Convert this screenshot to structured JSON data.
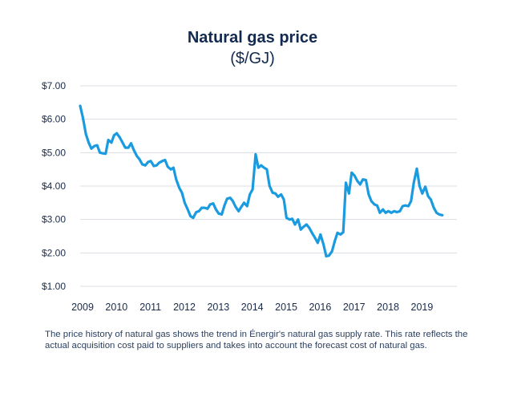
{
  "chart_data": {
    "type": "line",
    "title": "Natural gas price",
    "subtitle": "($/GJ)",
    "xlabel": "",
    "ylabel": "",
    "grid": true,
    "legend": "none",
    "line_color": "#1a9be0",
    "x_ticks": [
      "2009",
      "2010",
      "2011",
      "2012",
      "2013",
      "2014",
      "2015",
      "2016",
      "2017",
      "2018",
      "2019"
    ],
    "y_ticks": [
      "$1.00",
      "$2.00",
      "$3.00",
      "$4.00",
      "$5.00",
      "$6.00",
      "$7.00"
    ],
    "xlim": [
      2009,
      2020.1
    ],
    "ylim": [
      1,
      7
    ],
    "series": [
      {
        "values": [
          [
            2009.0,
            6.4
          ],
          [
            2009.08,
            6.05
          ],
          [
            2009.17,
            5.55
          ],
          [
            2009.25,
            5.3
          ],
          [
            2009.33,
            5.12
          ],
          [
            2009.42,
            5.2
          ],
          [
            2009.5,
            5.22
          ],
          [
            2009.58,
            5.0
          ],
          [
            2009.67,
            4.98
          ],
          [
            2009.75,
            4.97
          ],
          [
            2009.83,
            5.38
          ],
          [
            2009.92,
            5.3
          ],
          [
            2010.0,
            5.52
          ],
          [
            2010.08,
            5.58
          ],
          [
            2010.17,
            5.45
          ],
          [
            2010.25,
            5.3
          ],
          [
            2010.33,
            5.15
          ],
          [
            2010.42,
            5.15
          ],
          [
            2010.5,
            5.28
          ],
          [
            2010.58,
            5.08
          ],
          [
            2010.67,
            4.9
          ],
          [
            2010.75,
            4.8
          ],
          [
            2010.83,
            4.65
          ],
          [
            2010.92,
            4.62
          ],
          [
            2011.0,
            4.72
          ],
          [
            2011.08,
            4.75
          ],
          [
            2011.17,
            4.6
          ],
          [
            2011.25,
            4.62
          ],
          [
            2011.33,
            4.7
          ],
          [
            2011.42,
            4.75
          ],
          [
            2011.5,
            4.78
          ],
          [
            2011.58,
            4.58
          ],
          [
            2011.67,
            4.5
          ],
          [
            2011.75,
            4.55
          ],
          [
            2011.83,
            4.2
          ],
          [
            2011.92,
            3.95
          ],
          [
            2012.0,
            3.8
          ],
          [
            2012.08,
            3.5
          ],
          [
            2012.17,
            3.3
          ],
          [
            2012.25,
            3.1
          ],
          [
            2012.33,
            3.05
          ],
          [
            2012.42,
            3.22
          ],
          [
            2012.5,
            3.25
          ],
          [
            2012.58,
            3.35
          ],
          [
            2012.67,
            3.35
          ],
          [
            2012.75,
            3.32
          ],
          [
            2012.83,
            3.45
          ],
          [
            2012.92,
            3.48
          ],
          [
            2013.0,
            3.3
          ],
          [
            2013.08,
            3.18
          ],
          [
            2013.17,
            3.15
          ],
          [
            2013.25,
            3.42
          ],
          [
            2013.33,
            3.62
          ],
          [
            2013.42,
            3.65
          ],
          [
            2013.5,
            3.55
          ],
          [
            2013.58,
            3.38
          ],
          [
            2013.67,
            3.25
          ],
          [
            2013.75,
            3.38
          ],
          [
            2013.83,
            3.5
          ],
          [
            2013.92,
            3.4
          ],
          [
            2014.0,
            3.75
          ],
          [
            2014.08,
            3.9
          ],
          [
            2014.17,
            4.95
          ],
          [
            2014.25,
            4.55
          ],
          [
            2014.33,
            4.62
          ],
          [
            2014.42,
            4.55
          ],
          [
            2014.5,
            4.5
          ],
          [
            2014.58,
            4.0
          ],
          [
            2014.67,
            3.8
          ],
          [
            2014.75,
            3.78
          ],
          [
            2014.83,
            3.68
          ],
          [
            2014.92,
            3.75
          ],
          [
            2015.0,
            3.6
          ],
          [
            2015.08,
            3.05
          ],
          [
            2015.17,
            3.0
          ],
          [
            2015.25,
            3.02
          ],
          [
            2015.33,
            2.85
          ],
          [
            2015.42,
            3.0
          ],
          [
            2015.5,
            2.7
          ],
          [
            2015.58,
            2.78
          ],
          [
            2015.67,
            2.85
          ],
          [
            2015.75,
            2.75
          ],
          [
            2015.83,
            2.6
          ],
          [
            2015.92,
            2.45
          ],
          [
            2016.0,
            2.3
          ],
          [
            2016.08,
            2.55
          ],
          [
            2016.17,
            2.25
          ],
          [
            2016.25,
            1.9
          ],
          [
            2016.33,
            1.92
          ],
          [
            2016.42,
            2.05
          ],
          [
            2016.5,
            2.35
          ],
          [
            2016.58,
            2.6
          ],
          [
            2016.67,
            2.55
          ],
          [
            2016.75,
            2.62
          ],
          [
            2016.83,
            4.1
          ],
          [
            2016.92,
            3.78
          ],
          [
            2017.0,
            4.4
          ],
          [
            2017.08,
            4.32
          ],
          [
            2017.17,
            4.15
          ],
          [
            2017.25,
            4.05
          ],
          [
            2017.33,
            4.2
          ],
          [
            2017.42,
            4.18
          ],
          [
            2017.5,
            3.75
          ],
          [
            2017.58,
            3.55
          ],
          [
            2017.67,
            3.45
          ],
          [
            2017.75,
            3.42
          ],
          [
            2017.83,
            3.2
          ],
          [
            2017.92,
            3.3
          ],
          [
            2018.0,
            3.2
          ],
          [
            2018.08,
            3.25
          ],
          [
            2018.17,
            3.2
          ],
          [
            2018.25,
            3.25
          ],
          [
            2018.33,
            3.22
          ],
          [
            2018.42,
            3.25
          ],
          [
            2018.5,
            3.4
          ],
          [
            2018.58,
            3.42
          ],
          [
            2018.67,
            3.4
          ],
          [
            2018.75,
            3.55
          ],
          [
            2018.83,
            4.1
          ],
          [
            2018.92,
            4.52
          ],
          [
            2019.0,
            4.0
          ],
          [
            2019.08,
            3.78
          ],
          [
            2019.17,
            3.98
          ],
          [
            2019.25,
            3.7
          ],
          [
            2019.33,
            3.6
          ],
          [
            2019.42,
            3.35
          ],
          [
            2019.5,
            3.2
          ],
          [
            2019.58,
            3.15
          ],
          [
            2019.67,
            3.13
          ]
        ]
      }
    ]
  },
  "caption": "The price history of natural gas shows the trend in Énergir's natural gas supply rate. This rate reflects the actual acquisition cost paid to suppliers and takes into account the forecast cost of natural gas."
}
